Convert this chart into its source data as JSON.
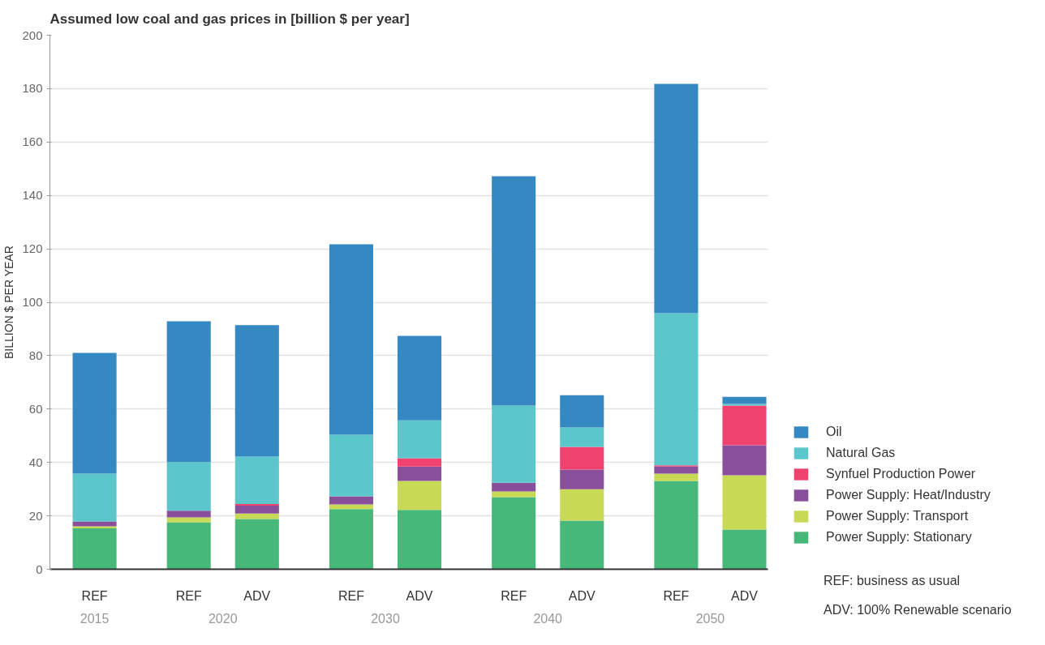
{
  "chart_data": {
    "type": "bar",
    "stacked": true,
    "title": "Assumed low coal and gas prices in [billion $ per year]",
    "ylabel": "BILLION $ PER YEAR",
    "categories": [
      "REF",
      "REF",
      "ADV",
      "REF",
      "ADV",
      "REF",
      "ADV",
      "REF",
      "ADV"
    ],
    "series": [
      {
        "name": "Power Supply: Stationary",
        "color": "#46b97a",
        "values": [
          15.3,
          17.6,
          18.8,
          22.5,
          22.2,
          27.0,
          18.2,
          33.1,
          14.9
        ]
      },
      {
        "name": "Power Supply: Transport",
        "color": "#c8da55",
        "values": [
          0.8,
          1.8,
          2.1,
          1.8,
          10.9,
          2.1,
          11.8,
          2.7,
          20.3
        ]
      },
      {
        "name": "Power Supply: Heat/Industry",
        "color": "#8a4f9b",
        "values": [
          1.8,
          2.5,
          2.9,
          3.0,
          5.4,
          3.3,
          7.3,
          2.7,
          11.2
        ]
      },
      {
        "name": "Synfuel Production Power",
        "color": "#ef426f",
        "values": [
          0,
          0,
          0.6,
          0,
          3.1,
          0,
          8.5,
          0.4,
          14.9
        ]
      },
      {
        "name": "Natural Gas",
        "color": "#5bc7cc",
        "values": [
          17.9,
          18.2,
          17.8,
          23.1,
          14.2,
          28.9,
          7.3,
          57.0,
          0.6
        ]
      },
      {
        "name": "Oil",
        "color": "#3589c3",
        "values": [
          45.2,
          52.8,
          49.2,
          71.3,
          31.6,
          85.9,
          12.1,
          85.9,
          2.7
        ]
      }
    ],
    "ylim": [
      0,
      200
    ],
    "yticks": [
      0,
      20,
      40,
      60,
      80,
      100,
      120,
      140,
      160,
      180,
      200
    ],
    "grid": "y",
    "legend": "right",
    "annotations": [
      "2015",
      "2020",
      "2030",
      "2040",
      "2050",
      "REF: business as usual",
      "ADV: 100% Renewable scenario"
    ]
  }
}
